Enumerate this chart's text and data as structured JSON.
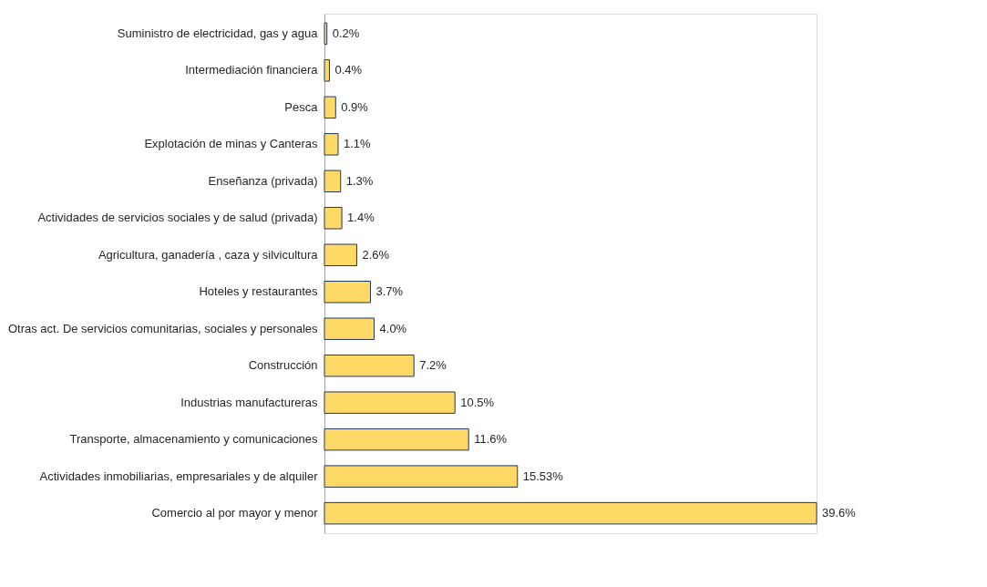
{
  "chart_data": {
    "type": "bar",
    "orientation": "horizontal",
    "tick_labels": "y",
    "categories": [
      "Suministro de electricidad, gas y agua",
      "Intermediación financiera",
      "Pesca",
      "Explotación de minas y Canteras",
      "Enseñanza (privada)",
      "Actividades de servicios sociales y de salud (privada)",
      "Agricultura, ganadería , caza y silvicultura",
      "Hoteles y restaurantes",
      "Otras act. De servicios comunitarias, sociales y personales",
      "Construcción",
      "Industrias manufactureras",
      "Transporte, almacenamiento y comunicaciones",
      "Actividades inmobiliarias, empresariales y de alquiler",
      "Comercio al por mayor y menor"
    ],
    "values": [
      0.2,
      0.4,
      0.9,
      1.1,
      1.3,
      1.4,
      2.6,
      3.7,
      4.0,
      7.2,
      10.5,
      11.6,
      15.53,
      39.6
    ],
    "value_labels": [
      "0.2%",
      "0.4%",
      "0.9%",
      "1.1%",
      "1.3%",
      "1.4%",
      "2.6%",
      "3.7%",
      "4.0%",
      "7.2%",
      "10.5%",
      "11.6%",
      "15.53%",
      "39.6%"
    ],
    "color": "#ffd966"
  }
}
